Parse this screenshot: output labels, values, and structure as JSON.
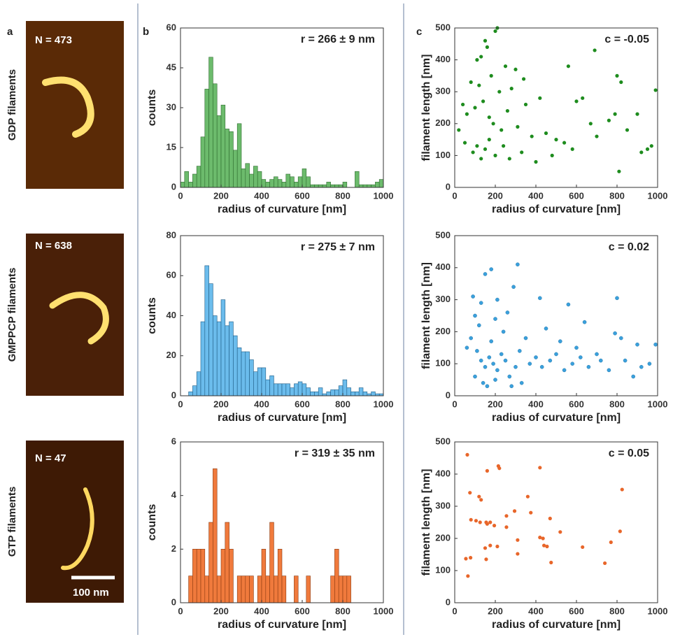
{
  "panel_labels": [
    "a",
    "b",
    "c"
  ],
  "images": [
    {
      "condition": "GDP filaments",
      "n": "N = 473"
    },
    {
      "condition": "GMPPCP filaments",
      "n": "N = 638"
    },
    {
      "condition": "GTP filaments",
      "n": "N = 47"
    }
  ],
  "scale_bar": "100 nm",
  "chart_data": [
    {
      "type": "histogram",
      "annotation": "r = 266 ± 9 nm",
      "xlabel": "radius of curvature [nm]",
      "ylabel": "counts",
      "color": "#6cbb6c",
      "edge": "#2e6b2e",
      "bins": [
        0,
        20,
        40,
        60,
        80,
        100,
        120,
        140,
        160,
        180,
        200,
        220,
        240,
        260,
        280,
        300,
        320,
        340,
        360,
        380,
        400,
        420,
        440,
        460,
        480,
        500,
        520,
        540,
        560,
        580,
        600,
        620,
        640,
        660,
        680,
        700,
        720,
        740,
        760,
        780,
        800,
        820,
        840,
        860,
        880,
        900,
        920,
        940,
        960,
        980,
        1000
      ],
      "values": [
        2,
        6,
        2,
        5,
        8,
        19,
        37,
        49,
        39,
        27,
        31,
        22,
        21,
        14,
        24,
        7,
        9,
        5,
        8,
        6,
        3,
        2,
        3,
        4,
        3,
        2,
        5,
        4,
        2,
        4,
        7,
        4,
        1,
        1,
        1,
        1,
        2,
        1,
        1,
        1,
        2,
        0,
        0,
        6,
        1,
        1,
        1,
        1,
        2,
        3
      ],
      "xlim": [
        0,
        1000
      ],
      "ylim": [
        0,
        60
      ],
      "xticks": [
        0,
        200,
        400,
        600,
        800,
        1000
      ],
      "yticks": [
        0,
        15,
        30,
        45,
        60
      ]
    },
    {
      "type": "histogram",
      "annotation": "r = 275 ± 7 nm",
      "xlabel": "radius of curvature [nm]",
      "ylabel": "counts",
      "color": "#6bbcec",
      "edge": "#1f5c85",
      "bins": [
        0,
        20,
        40,
        60,
        80,
        100,
        120,
        140,
        160,
        180,
        200,
        220,
        240,
        260,
        280,
        300,
        320,
        340,
        360,
        380,
        400,
        420,
        440,
        460,
        480,
        500,
        520,
        540,
        560,
        580,
        600,
        620,
        640,
        660,
        680,
        700,
        720,
        740,
        760,
        780,
        800,
        820,
        840,
        860,
        880,
        900,
        920,
        940,
        960,
        980,
        1000
      ],
      "values": [
        0,
        0,
        2,
        5,
        12,
        37,
        65,
        56,
        40,
        37,
        48,
        35,
        37,
        30,
        24,
        22,
        22,
        18,
        12,
        14,
        14,
        8,
        10,
        6,
        6,
        6,
        6,
        4,
        6,
        7,
        6,
        4,
        2,
        2,
        4,
        1,
        2,
        3,
        3,
        5,
        8,
        4,
        2,
        2,
        4,
        2,
        1,
        2,
        1,
        1
      ],
      "xlim": [
        0,
        1000
      ],
      "ylim": [
        0,
        80
      ],
      "xticks": [
        0,
        200,
        400,
        600,
        800,
        1000
      ],
      "yticks": [
        0,
        20,
        40,
        60,
        80
      ]
    },
    {
      "type": "histogram",
      "annotation": "r = 319 ± 35 nm",
      "xlabel": "radius of curvature [nm]",
      "ylabel": "counts",
      "color": "#f07a3c",
      "edge": "#8a3a10",
      "bins": [
        0,
        20,
        40,
        60,
        80,
        100,
        120,
        140,
        160,
        180,
        200,
        220,
        240,
        260,
        280,
        300,
        320,
        340,
        360,
        380,
        400,
        420,
        440,
        460,
        480,
        500,
        520,
        540,
        560,
        580,
        600,
        620,
        640,
        660,
        680,
        700,
        720,
        740,
        760,
        780,
        800,
        820,
        840,
        860,
        880,
        900,
        920,
        940,
        960,
        980,
        1000
      ],
      "values": [
        0,
        0,
        1,
        2,
        2,
        2,
        1,
        3,
        5,
        1,
        2,
        3,
        2,
        0,
        1,
        1,
        1,
        1,
        0,
        1,
        2,
        1,
        3,
        1,
        2,
        1,
        0,
        0,
        1,
        0,
        0,
        1,
        0,
        0,
        0,
        0,
        0,
        1,
        2,
        1,
        1,
        1,
        0,
        0,
        0,
        0,
        0,
        0,
        0,
        0
      ],
      "xlim": [
        0,
        1000
      ],
      "ylim": [
        0,
        6
      ],
      "xticks": [
        0,
        200,
        400,
        600,
        800,
        1000
      ],
      "yticks": [
        0,
        2,
        4,
        6
      ]
    },
    {
      "type": "scatter",
      "annotation": "c = -0.05",
      "xlabel": "radius of curvature [nm]",
      "ylabel": "filament length [nm]",
      "color": "#1e8c1e",
      "x": [
        150,
        160,
        200,
        210,
        110,
        130,
        250,
        300,
        80,
        120,
        180,
        220,
        280,
        340,
        350,
        420,
        560,
        690,
        800,
        820,
        990,
        40,
        60,
        100,
        140,
        170,
        190,
        230,
        260,
        310,
        380,
        450,
        500,
        540,
        600,
        630,
        700,
        760,
        790,
        850,
        900,
        950,
        970,
        20,
        50,
        90,
        110,
        130,
        150,
        170,
        200,
        240,
        270,
        330,
        400,
        480,
        580,
        670,
        810,
        920
      ],
      "values": [
        460,
        440,
        490,
        500,
        400,
        410,
        380,
        370,
        330,
        320,
        350,
        300,
        310,
        340,
        260,
        280,
        380,
        430,
        350,
        330,
        305,
        260,
        230,
        250,
        270,
        220,
        200,
        180,
        240,
        190,
        160,
        170,
        150,
        140,
        270,
        280,
        160,
        210,
        230,
        180,
        230,
        120,
        130,
        180,
        140,
        110,
        130,
        90,
        120,
        150,
        100,
        130,
        90,
        110,
        80,
        100,
        120,
        200,
        50,
        110
      ],
      "xlim": [
        0,
        1000
      ],
      "ylim": [
        0,
        500
      ],
      "xticks": [
        0,
        200,
        400,
        600,
        800,
        1000
      ],
      "yticks": [
        0,
        100,
        200,
        300,
        400,
        500
      ]
    },
    {
      "type": "scatter",
      "annotation": "c = 0.02",
      "xlabel": "radius of curvature [nm]",
      "ylabel": "filament length [nm]",
      "color": "#3aa0dc",
      "x": [
        310,
        180,
        150,
        290,
        90,
        130,
        210,
        260,
        420,
        560,
        800,
        640,
        100,
        120,
        200,
        240,
        350,
        450,
        520,
        600,
        700,
        790,
        820,
        900,
        990,
        60,
        80,
        110,
        130,
        150,
        170,
        190,
        210,
        230,
        250,
        270,
        300,
        320,
        370,
        400,
        430,
        470,
        500,
        540,
        580,
        620,
        660,
        720,
        760,
        840,
        880,
        920,
        960,
        100,
        140,
        160,
        200,
        280,
        330,
        180
      ],
      "values": [
        410,
        395,
        380,
        340,
        310,
        290,
        300,
        260,
        305,
        285,
        305,
        230,
        250,
        220,
        240,
        200,
        180,
        210,
        170,
        150,
        130,
        195,
        180,
        160,
        160,
        150,
        180,
        140,
        110,
        90,
        120,
        100,
        80,
        130,
        110,
        60,
        90,
        140,
        100,
        120,
        90,
        110,
        130,
        80,
        100,
        120,
        90,
        110,
        80,
        110,
        60,
        90,
        100,
        60,
        40,
        30,
        50,
        30,
        40,
        170
      ],
      "xlim": [
        0,
        1000
      ],
      "ylim": [
        0,
        500
      ],
      "xticks": [
        0,
        200,
        400,
        600,
        800,
        1000
      ],
      "yticks": [
        0,
        100,
        200,
        300,
        400,
        500
      ]
    },
    {
      "type": "scatter",
      "annotation": "c = 0.05",
      "xlabel": "radius of curvature [nm]",
      "ylabel": "filament length [nm]",
      "color": "#e8662a",
      "x": [
        62,
        75,
        80,
        55,
        65,
        78,
        120,
        130,
        105,
        125,
        150,
        155,
        160,
        160,
        175,
        155,
        175,
        195,
        210,
        215,
        220,
        255,
        255,
        295,
        310,
        310,
        360,
        375,
        420,
        420,
        440,
        455,
        470,
        475,
        520,
        630,
        740,
        770,
        815,
        825,
        435
      ],
      "values": [
        460,
        342,
        258,
        137,
        83,
        140,
        330,
        320,
        255,
        250,
        170,
        250,
        245,
        410,
        250,
        135,
        178,
        240,
        175,
        425,
        418,
        270,
        235,
        285,
        195,
        152,
        330,
        280,
        420,
        203,
        178,
        175,
        262,
        125,
        220,
        173,
        123,
        188,
        222,
        352,
        200
      ],
      "xlim": [
        0,
        1000
      ],
      "ylim": [
        0,
        500
      ],
      "xticks": [
        0,
        200,
        400,
        600,
        800,
        1000
      ],
      "yticks": [
        0,
        100,
        200,
        300,
        400,
        500
      ]
    }
  ]
}
